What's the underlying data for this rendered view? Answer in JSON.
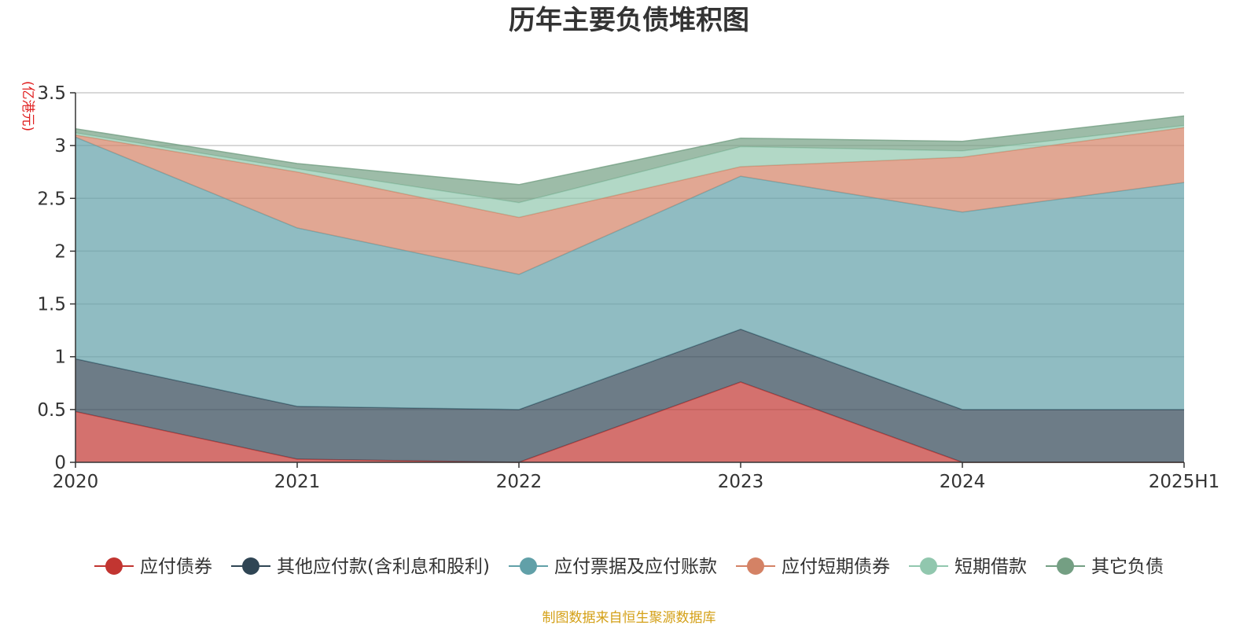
{
  "chart_data": {
    "type": "area",
    "stacked": true,
    "title": "历年主要负债堆积图",
    "ylabel": "(亿港元)",
    "xlabel": "",
    "categories": [
      "2020",
      "2021",
      "2022",
      "2023",
      "2024",
      "2025H1"
    ],
    "ylim": [
      0,
      3.5
    ],
    "yticks": [
      "0",
      "0.5",
      "1",
      "1.5",
      "2",
      "2.5",
      "3",
      "3.5"
    ],
    "grid": true,
    "legend_position": "bottom",
    "series": [
      {
        "name": "应付债券",
        "color": "#c23531",
        "values": [
          0.48,
          0.03,
          0.0,
          0.76,
          0.0,
          0.0
        ]
      },
      {
        "name": "其他应付款(含利息和股利)",
        "color": "#2f4554",
        "values": [
          0.5,
          0.5,
          0.5,
          0.5,
          0.5,
          0.5
        ]
      },
      {
        "name": "应付票据及应付账款",
        "color": "#61a0a8",
        "values": [
          2.1,
          1.69,
          1.28,
          1.45,
          1.87,
          2.15
        ]
      },
      {
        "name": "应付短期债券",
        "color": "#d48265",
        "values": [
          0.02,
          0.53,
          0.54,
          0.09,
          0.52,
          0.52
        ]
      },
      {
        "name": "短期借款",
        "color": "#91c7ae",
        "values": [
          0.02,
          0.03,
          0.14,
          0.19,
          0.06,
          0.02
        ]
      },
      {
        "name": "其它负债",
        "color": "#749f83",
        "values": [
          0.04,
          0.05,
          0.17,
          0.08,
          0.09,
          0.09
        ]
      }
    ]
  },
  "footer": {
    "source": "制图数据来自恒生聚源数据库"
  }
}
